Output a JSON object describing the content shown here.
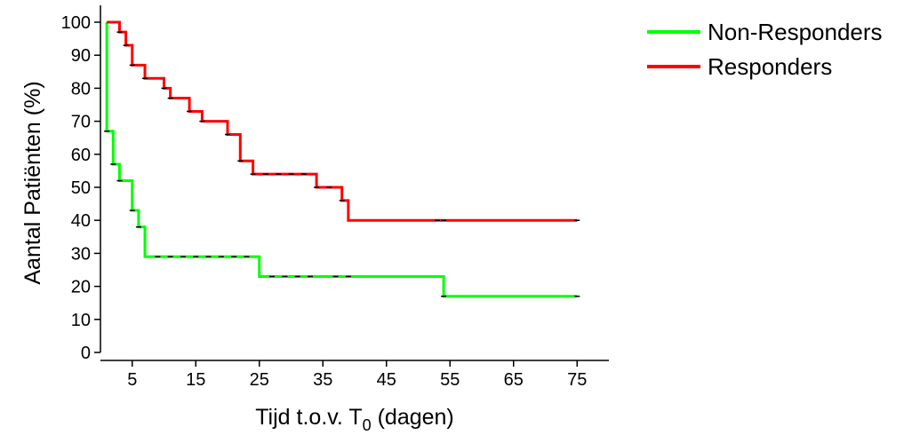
{
  "chart_data": {
    "type": "line",
    "step": true,
    "title": "",
    "xlabel": "Tijd t.o.v. T",
    "xlabel_subscript": "0",
    "xlabel_suffix": " (dagen)",
    "ylabel": "Aantal Patiënten (%)",
    "xlim": [
      0,
      80
    ],
    "ylim": [
      0,
      105
    ],
    "x_ticks": [
      5,
      15,
      25,
      35,
      45,
      55,
      65,
      75
    ],
    "y_ticks": [
      0,
      10,
      20,
      30,
      40,
      50,
      60,
      70,
      80,
      90,
      100
    ],
    "grid": false,
    "legend_position": "top-right",
    "series": [
      {
        "name": "Non-Responders",
        "color": "#00ff00",
        "points": [
          [
            1,
            100
          ],
          [
            1,
            67
          ],
          [
            2,
            57
          ],
          [
            3,
            52
          ],
          [
            5,
            43
          ],
          [
            6,
            38
          ],
          [
            7,
            29
          ],
          [
            25,
            23
          ],
          [
            54,
            17
          ],
          [
            75,
            17
          ]
        ],
        "censored": [
          [
            1,
            67
          ],
          [
            2,
            57
          ],
          [
            3,
            52
          ],
          [
            5,
            43
          ],
          [
            6,
            38
          ],
          [
            9,
            29
          ],
          [
            11,
            29
          ],
          [
            13,
            29
          ],
          [
            15,
            29
          ],
          [
            17,
            29
          ],
          [
            19,
            29
          ],
          [
            21,
            29
          ],
          [
            23,
            29
          ],
          [
            27,
            23
          ],
          [
            29,
            23
          ],
          [
            31,
            23
          ],
          [
            33,
            23
          ],
          [
            37,
            23
          ],
          [
            39,
            23
          ],
          [
            54,
            17
          ],
          [
            75,
            17
          ]
        ]
      },
      {
        "name": "Responders",
        "color": "#ff0000",
        "points": [
          [
            1,
            100
          ],
          [
            3,
            97
          ],
          [
            4,
            93
          ],
          [
            5,
            87
          ],
          [
            7,
            83
          ],
          [
            10,
            80
          ],
          [
            11,
            77
          ],
          [
            14,
            73
          ],
          [
            16,
            70
          ],
          [
            20,
            66
          ],
          [
            22,
            58
          ],
          [
            24,
            54
          ],
          [
            34,
            50
          ],
          [
            38,
            46
          ],
          [
            39,
            40
          ],
          [
            75,
            40
          ]
        ],
        "censored": [
          [
            3,
            97
          ],
          [
            4,
            93
          ],
          [
            5,
            87
          ],
          [
            7,
            83
          ],
          [
            10,
            80
          ],
          [
            11,
            77
          ],
          [
            14,
            73
          ],
          [
            16,
            70
          ],
          [
            20,
            66
          ],
          [
            22,
            58
          ],
          [
            24,
            54
          ],
          [
            26,
            54
          ],
          [
            28,
            54
          ],
          [
            30,
            54
          ],
          [
            32,
            54
          ],
          [
            34,
            50
          ],
          [
            36,
            50
          ],
          [
            38,
            46
          ],
          [
            53,
            40
          ],
          [
            54,
            40
          ],
          [
            75,
            40
          ]
        ]
      }
    ]
  }
}
